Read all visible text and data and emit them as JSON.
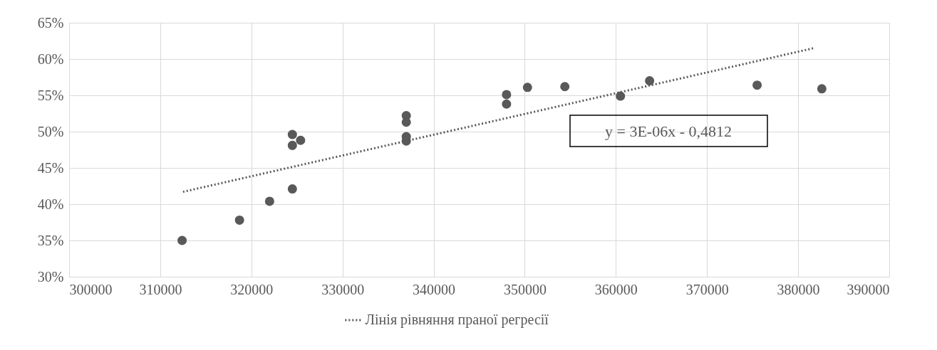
{
  "chart_data": {
    "type": "scatter",
    "marker": "circle",
    "grid": true,
    "legend": "bottom",
    "xlim": [
      300000,
      390000
    ],
    "xticks": [
      300000,
      310000,
      320000,
      330000,
      340000,
      350000,
      360000,
      370000,
      380000,
      390000
    ],
    "ylim": [
      30,
      65
    ],
    "yticks": [
      {
        "value": 30,
        "label": "30%"
      },
      {
        "value": 35,
        "label": "35%"
      },
      {
        "value": 40,
        "label": "40%"
      },
      {
        "value": 45,
        "label": "45%"
      },
      {
        "value": 50,
        "label": "50%"
      },
      {
        "value": 55,
        "label": "55%"
      },
      {
        "value": 60,
        "label": "60%"
      },
      {
        "value": 65,
        "label": "65%"
      }
    ],
    "series": [
      {
        "color": "#595959",
        "x": [
          312400,
          318700,
          322000,
          324500,
          324500,
          324500,
          325400,
          337000,
          337000,
          337000,
          337000,
          348000,
          348000,
          350300,
          354400,
          360500,
          363700,
          375500,
          382600
        ],
        "values": [
          35.0,
          37.8,
          40.4,
          42.1,
          49.6,
          48.1,
          48.8,
          52.2,
          51.3,
          49.3,
          48.7,
          55.1,
          53.8,
          56.1,
          56.2,
          54.9,
          57.0,
          56.4,
          55.9
        ]
      },
      {
        "type": "line",
        "marker": "none",
        "name": "Лінія рівняння праної регресії",
        "color": "#595959",
        "line_style": "dotted",
        "x": [
          312500,
          381700
        ],
        "values": [
          41.7,
          61.5
        ]
      }
    ],
    "annotations": [
      "y = 3E-06x - 0,4812"
    ]
  }
}
